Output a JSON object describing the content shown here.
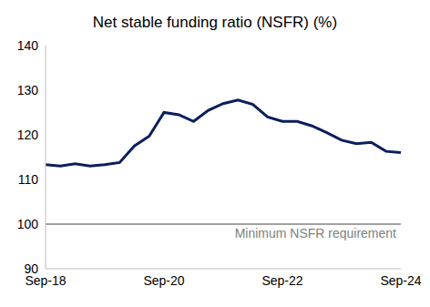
{
  "chart_data": {
    "type": "line",
    "title": "Net stable funding ratio (NSFR) (%)",
    "categories": [
      "Sep-18",
      null,
      null,
      null,
      null,
      null,
      null,
      null,
      "Sep-20",
      null,
      null,
      null,
      null,
      null,
      null,
      null,
      "Sep-22",
      null,
      null,
      null,
      null,
      null,
      null,
      null,
      "Sep-24"
    ],
    "values": [
      113.3,
      113.0,
      113.5,
      113.0,
      113.3,
      113.8,
      117.5,
      119.7,
      125.0,
      124.5,
      123.0,
      125.5,
      127.0,
      127.8,
      126.8,
      124.0,
      123.0,
      123.0,
      122.0,
      120.5,
      118.8,
      118.0,
      118.3,
      116.3,
      116.0
    ],
    "color": "#0a1f5c",
    "ylim": [
      90,
      140
    ],
    "yticks": [
      90,
      100,
      110,
      120,
      130,
      140
    ],
    "grid": false,
    "reference_line": {
      "value": 100,
      "label": "Minimum NSFR requirement",
      "color": "#808080"
    }
  }
}
